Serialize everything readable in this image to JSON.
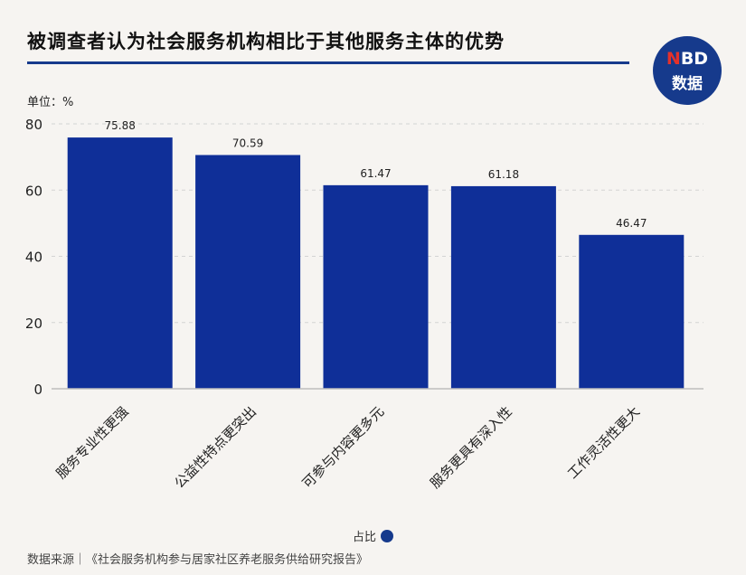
{
  "title": "被调查者认为社会服务机构相比于其他服务主体的优势",
  "logo": {
    "top_red": "N",
    "top_white": "BD",
    "bottom": "数据"
  },
  "unit_label": "单位：%",
  "legend_label": "占比",
  "source": "数据来源｜《社会服务机构参与居家社区养老服务供给研究报告》",
  "colors": {
    "bar": "#0f2f98",
    "accent": "#163a8c",
    "grid": "#d3d3d3"
  },
  "chart_data": {
    "type": "bar",
    "title": "被调查者认为社会服务机构相比于其他服务主体的优势",
    "categories": [
      "服务专业性更强",
      "公益性特点更突出",
      "可参与内容更多元",
      "服务更具有深入性",
      "工作灵活性更大"
    ],
    "series": [
      {
        "name": "占比",
        "values": [
          75.88,
          70.59,
          61.47,
          61.18,
          46.47
        ]
      }
    ],
    "ylim": [
      0,
      80
    ],
    "yticks": [
      0,
      20,
      40,
      60,
      80
    ],
    "ylabel": "单位：%",
    "xlabel": "",
    "grid": true,
    "legend": "bottom-center"
  }
}
